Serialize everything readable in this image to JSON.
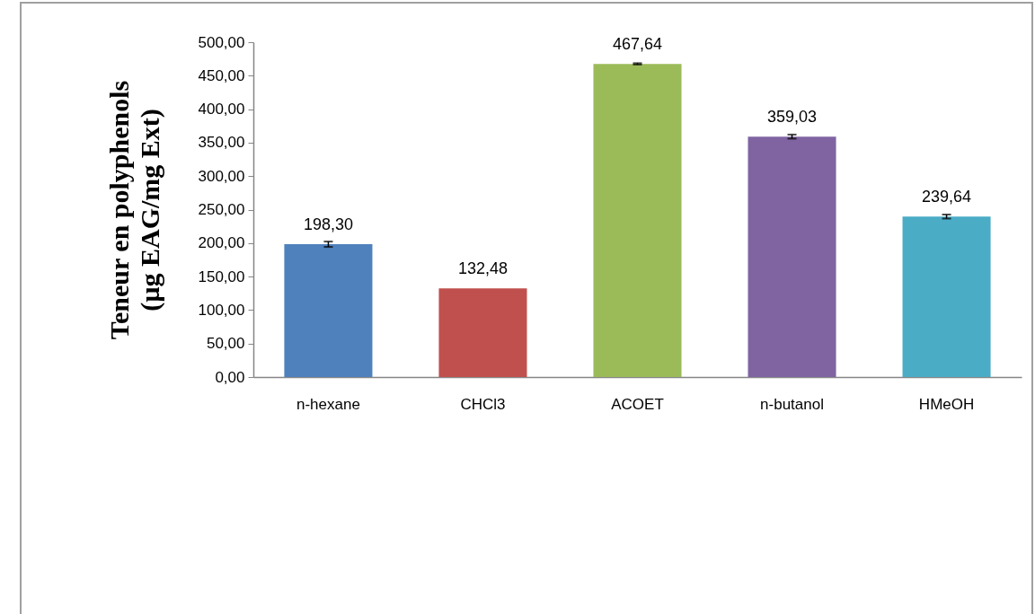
{
  "chart_data": {
    "type": "bar",
    "ylabel": "Teneur en  polyphenols\n(µg EAG/mg Ext)",
    "categories": [
      "n-hexane",
      "CHCl3",
      "ACOET",
      "n-butanol",
      "HMeOH"
    ],
    "values": [
      198.3,
      132.48,
      467.64,
      359.03,
      239.64
    ],
    "colors": [
      "#4f81bd",
      "#c0504d",
      "#9bbb59",
      "#8064a2",
      "#4bacc6"
    ],
    "errors": [
      4,
      null,
      1,
      3,
      3
    ],
    "value_labels": [
      "198,30",
      "132,48",
      "467,64",
      "359,03",
      "239,64"
    ],
    "ylim": [
      0,
      500
    ],
    "yticks": [
      {
        "value": 0,
        "label": "0,00"
      },
      {
        "value": 50,
        "label": "50,00"
      },
      {
        "value": 100,
        "label": "100,00"
      },
      {
        "value": 150,
        "label": "150,00"
      },
      {
        "value": 200,
        "label": "200,00"
      },
      {
        "value": 250,
        "label": "250,00"
      },
      {
        "value": 300,
        "label": "300,00"
      },
      {
        "value": 350,
        "label": "350,00"
      },
      {
        "value": 400,
        "label": "400,00"
      },
      {
        "value": 450,
        "label": "450,00"
      },
      {
        "value": 500,
        "label": "500,00"
      }
    ],
    "grid": false,
    "legend": false
  }
}
